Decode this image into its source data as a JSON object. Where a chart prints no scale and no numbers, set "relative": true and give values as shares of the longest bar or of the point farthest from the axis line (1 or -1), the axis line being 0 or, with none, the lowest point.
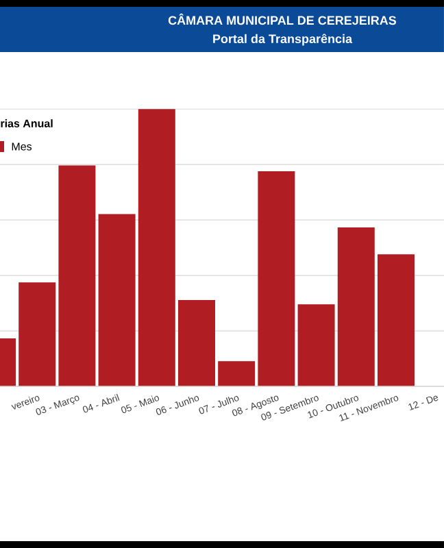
{
  "chart_data": {
    "type": "bar",
    "title": "CÂMARA MUNICIPAL DE CEREJEIRAS",
    "subtitle": "Portal da Transparência",
    "legend_title": "rias Anual",
    "categories": [
      null,
      "vereiro",
      "03 - Março",
      "04 - Abril",
      "05 - Maio",
      "06 - Junho",
      "07 - Julho",
      "08 - Agosto",
      "09 - Setembro",
      "10 - Outubro",
      "11 - Novembro",
      "12 - De"
    ],
    "series": [
      {
        "name": "Mes",
        "color": "#b01e23",
        "values": [
          0.173,
          0.375,
          0.797,
          0.621,
          1,
          0.311,
          0.091,
          0.776,
          0.296,
          0.573,
          0.476,
          null
        ]
      }
    ],
    "relative": true,
    "grid": "y",
    "legend": "top left"
  }
}
